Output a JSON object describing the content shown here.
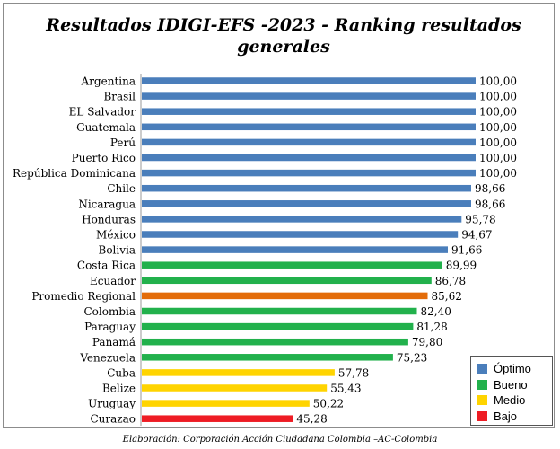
{
  "title_line1": "Resultados IDIGI-EFS -2023 - Ranking resultados",
  "title_line2": "generales",
  "footer": "Elaboración: Corporación Acción Ciudadana Colombia –AC-Colombia",
  "colors": {
    "optimo": "#4a7ebb",
    "bueno": "#22b14c",
    "medio": "#ffd400",
    "bajo": "#ee1c24",
    "promedio": "#e36c0a"
  },
  "legend": [
    {
      "label": "Óptimo",
      "color": "#4a7ebb"
    },
    {
      "label": "Bueno",
      "color": "#22b14c"
    },
    {
      "label": "Medio",
      "color": "#ffd400"
    },
    {
      "label": "Bajo",
      "color": "#ee1c24"
    }
  ],
  "chart_data": {
    "type": "bar",
    "orientation": "horizontal",
    "title": "Resultados IDIGI-EFS -2023 - Ranking resultados generales",
    "xlim": [
      0,
      100
    ],
    "grid": false,
    "legend_position": "bottom-right",
    "categories": [
      "Argentina",
      "Brasil",
      "EL Salvador",
      "Guatemala",
      "Perú",
      "Puerto Rico",
      "República Dominicana",
      "Chile",
      "Nicaragua",
      "Honduras",
      "México",
      "Bolivia",
      "Costa Rica",
      "Ecuador",
      "Promedio Regional",
      "Colombia",
      "Paraguay",
      "Panamá",
      "Venezuela",
      "Cuba",
      "Belize",
      "Uruguay",
      "Curazao"
    ],
    "values": [
      100.0,
      100.0,
      100.0,
      100.0,
      100.0,
      100.0,
      100.0,
      98.66,
      98.66,
      95.78,
      94.67,
      91.66,
      89.99,
      86.78,
      85.62,
      82.4,
      81.28,
      79.8,
      75.23,
      57.78,
      55.43,
      50.22,
      45.28
    ],
    "value_labels": [
      "100,00",
      "100,00",
      "100,00",
      "100,00",
      "100,00",
      "100,00",
      "100,00",
      "98,66",
      "98,66",
      "95,78",
      "94,67",
      "91,66",
      "89,99",
      "86,78",
      "85,62",
      "82,40",
      "81,28",
      "79,80",
      "75,23",
      "57,78",
      "55,43",
      "50,22",
      "45,28"
    ],
    "bar_colors": [
      "#4a7ebb",
      "#4a7ebb",
      "#4a7ebb",
      "#4a7ebb",
      "#4a7ebb",
      "#4a7ebb",
      "#4a7ebb",
      "#4a7ebb",
      "#4a7ebb",
      "#4a7ebb",
      "#4a7ebb",
      "#4a7ebb",
      "#22b14c",
      "#22b14c",
      "#e36c0a",
      "#22b14c",
      "#22b14c",
      "#22b14c",
      "#22b14c",
      "#ffd400",
      "#ffd400",
      "#ffd400",
      "#ee1c24"
    ]
  }
}
